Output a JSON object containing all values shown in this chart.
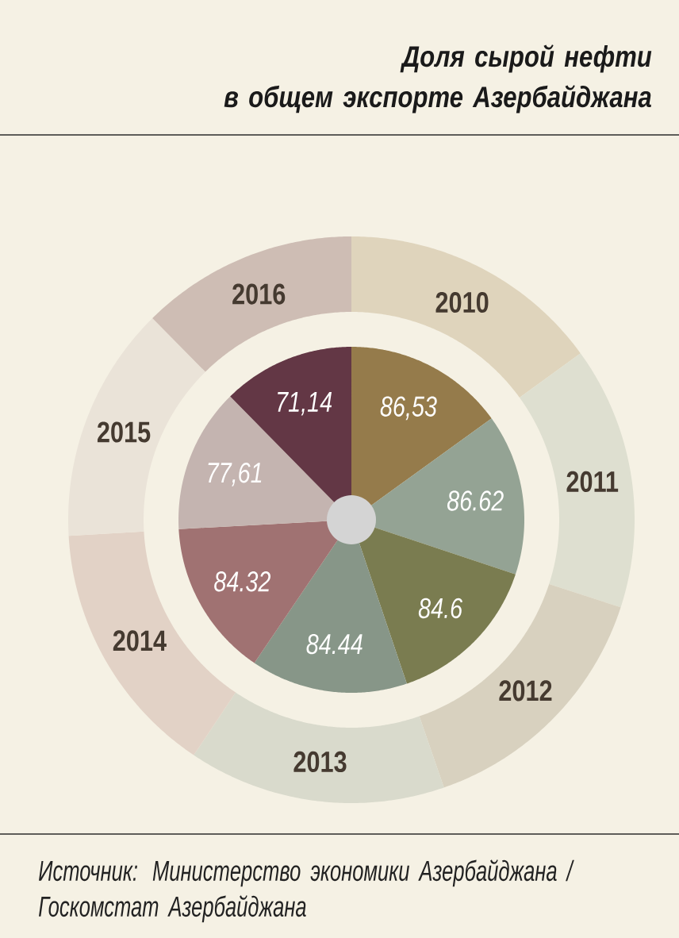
{
  "chart_data": {
    "type": "pie",
    "title": "Доля сырой нефти\nв общем экспорте Азербайджана",
    "categories": [
      "2010",
      "2011",
      "2012",
      "2013",
      "2014",
      "2015",
      "2016"
    ],
    "series": [
      {
        "values": [
          86.53,
          86.62,
          84.6,
          84.44,
          84.32,
          77.61,
          71.14
        ],
        "colors": [
          "#957b4b",
          "#94a394",
          "#7a7c50",
          "#879688",
          "#a07272",
          "#c4b4b0",
          "#633745"
        ],
        "value_labels": [
          "86,53",
          "86.62",
          "84.6",
          "84.44",
          "84.32",
          "77,61",
          "71,14"
        ]
      },
      {
        "values": [
          15.0,
          15.0,
          14.7,
          14.7,
          14.7,
          13.5,
          12.4
        ],
        "colors": [
          "#dfd4bc",
          "#dedfd0",
          "#d8d1bf",
          "#d9dacc",
          "#e2d2c6",
          "#eae3d8",
          "#cebdb4"
        ]
      }
    ],
    "annotations": [
      "Источник: Министерство экономики Азербайджана / Госкомстат Азербайджана"
    ]
  }
}
